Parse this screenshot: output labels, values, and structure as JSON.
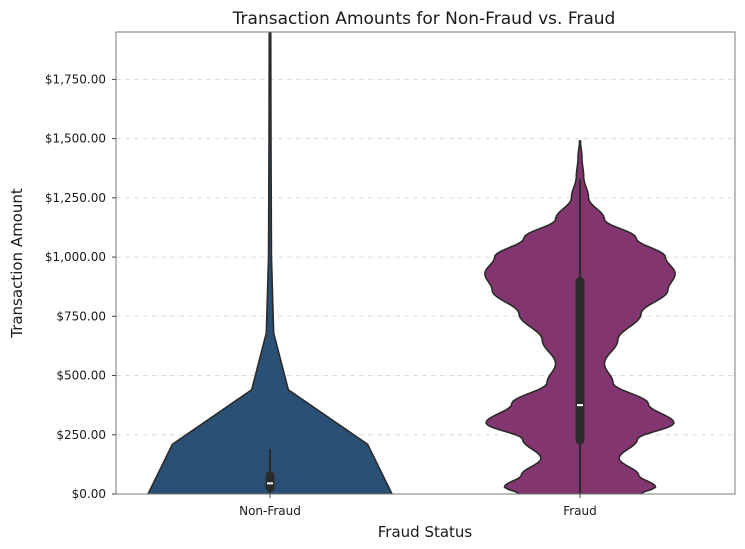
{
  "chart_data": {
    "type": "violin",
    "title": "Transaction Amounts for Non-Fraud vs. Fraud",
    "xlabel": "Fraud Status",
    "ylabel": "Transaction Amount",
    "categories": [
      "Non-Fraud",
      "Fraud"
    ],
    "ylim": [
      0,
      1950
    ],
    "yticks": [
      0,
      250,
      500,
      750,
      1000,
      1250,
      1500,
      1750
    ],
    "ytick_labels": [
      "$0.00",
      "$250.00",
      "$500.00",
      "$750.00",
      "$1,000.00",
      "$1,250.00",
      "$1,500.00",
      "$1,750.00"
    ],
    "grid": true,
    "colors": {
      "Non-Fraud": "#2a5075",
      "Fraud": "#833570"
    },
    "violins": [
      {
        "category": "Non-Fraud",
        "whisker": [
          0,
          190
        ],
        "quartiles": [
          10,
          95
        ],
        "median": 45,
        "density": [
          [
            0,
            1.0
          ],
          [
            210,
            0.8
          ],
          [
            440,
            0.15
          ],
          [
            680,
            0.03
          ],
          [
            1000,
            0.012
          ],
          [
            1500,
            0.008
          ],
          [
            1950,
            0.006
          ]
        ]
      },
      {
        "category": "Fraud",
        "whisker": [
          0,
          1330
        ],
        "quartiles": [
          210,
          915
        ],
        "median": 375,
        "density": [
          [
            0,
            0.5
          ],
          [
            30,
            0.62
          ],
          [
            80,
            0.48
          ],
          [
            150,
            0.32
          ],
          [
            230,
            0.47
          ],
          [
            300,
            0.77
          ],
          [
            380,
            0.56
          ],
          [
            470,
            0.27
          ],
          [
            550,
            0.2
          ],
          [
            650,
            0.31
          ],
          [
            760,
            0.5
          ],
          [
            860,
            0.72
          ],
          [
            930,
            0.78
          ],
          [
            1000,
            0.7
          ],
          [
            1080,
            0.46
          ],
          [
            1160,
            0.2
          ],
          [
            1250,
            0.07
          ],
          [
            1340,
            0.03
          ],
          [
            1420,
            0.016
          ],
          [
            1490,
            0.004
          ]
        ]
      }
    ]
  }
}
